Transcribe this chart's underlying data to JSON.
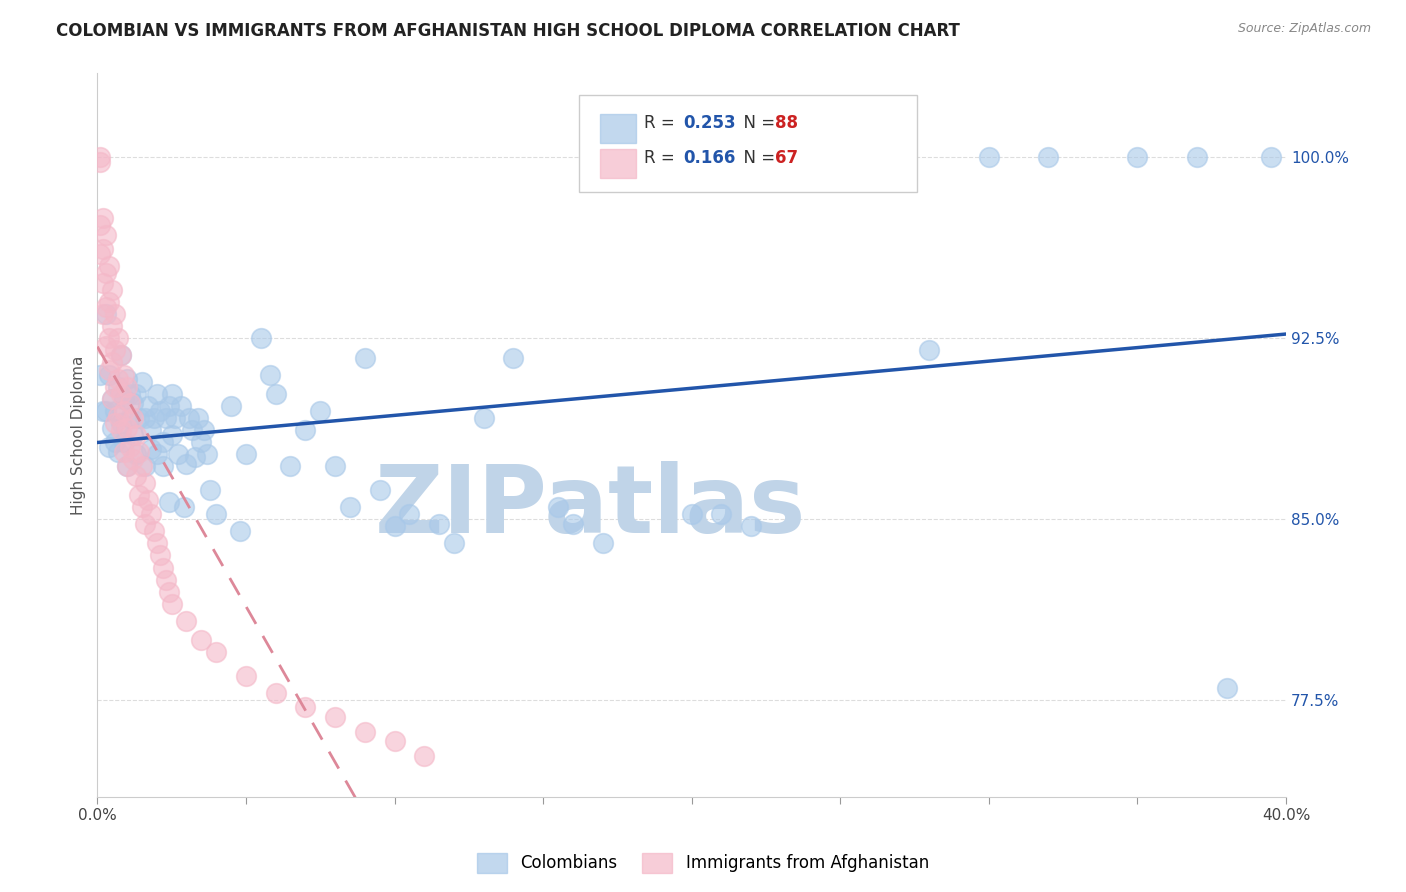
{
  "title": "COLOMBIAN VS IMMIGRANTS FROM AFGHANISTAN HIGH SCHOOL DIPLOMA CORRELATION CHART",
  "source": "Source: ZipAtlas.com",
  "ylabel": "High School Diploma",
  "xlim": [
    0.0,
    0.4
  ],
  "ylim": [
    0.735,
    1.035
  ],
  "xtick_positions": [
    0.0,
    0.05,
    0.1,
    0.15,
    0.2,
    0.25,
    0.3,
    0.35,
    0.4
  ],
  "xticklabels": [
    "0.0%",
    "",
    "",
    "",
    "",
    "",
    "",
    "",
    "40.0%"
  ],
  "ytick_positions": [
    0.775,
    0.85,
    0.925,
    1.0
  ],
  "ytick_labels": [
    "77.5%",
    "85.0%",
    "92.5%",
    "100.0%"
  ],
  "colombian_R": 0.253,
  "colombian_N": 88,
  "afghan_R": 0.166,
  "afghan_N": 67,
  "blue_scatter_color": "#a8c8e8",
  "pink_scatter_color": "#f4b8c8",
  "blue_line_color": "#2255aa",
  "pink_line_color": "#cc4466",
  "pink_dash_color": "#dd8899",
  "ytick_color": "#2255aa",
  "watermark": "ZIPatlas",
  "watermark_zip_color": "#c0d4e8",
  "watermark_atlas_color": "#88aacc",
  "legend_R_color": "#2255aa",
  "legend_N_color": "#cc2222",
  "blue_points": [
    [
      0.001,
      0.91
    ],
    [
      0.002,
      0.895
    ],
    [
      0.003,
      0.935
    ],
    [
      0.003,
      0.895
    ],
    [
      0.004,
      0.91
    ],
    [
      0.004,
      0.88
    ],
    [
      0.005,
      0.9
    ],
    [
      0.005,
      0.888
    ],
    [
      0.006,
      0.895
    ],
    [
      0.006,
      0.882
    ],
    [
      0.007,
      0.905
    ],
    [
      0.007,
      0.878
    ],
    [
      0.008,
      0.918
    ],
    [
      0.008,
      0.89
    ],
    [
      0.009,
      0.882
    ],
    [
      0.009,
      0.9
    ],
    [
      0.01,
      0.908
    ],
    [
      0.01,
      0.872
    ],
    [
      0.011,
      0.902
    ],
    [
      0.011,
      0.892
    ],
    [
      0.012,
      0.898
    ],
    [
      0.012,
      0.885
    ],
    [
      0.013,
      0.902
    ],
    [
      0.013,
      0.877
    ],
    [
      0.014,
      0.892
    ],
    [
      0.015,
      0.907
    ],
    [
      0.016,
      0.892
    ],
    [
      0.016,
      0.872
    ],
    [
      0.017,
      0.897
    ],
    [
      0.018,
      0.887
    ],
    [
      0.018,
      0.879
    ],
    [
      0.019,
      0.892
    ],
    [
      0.02,
      0.902
    ],
    [
      0.02,
      0.877
    ],
    [
      0.021,
      0.895
    ],
    [
      0.022,
      0.882
    ],
    [
      0.022,
      0.872
    ],
    [
      0.023,
      0.892
    ],
    [
      0.024,
      0.897
    ],
    [
      0.024,
      0.857
    ],
    [
      0.025,
      0.902
    ],
    [
      0.025,
      0.885
    ],
    [
      0.026,
      0.892
    ],
    [
      0.027,
      0.877
    ],
    [
      0.028,
      0.897
    ],
    [
      0.029,
      0.855
    ],
    [
      0.03,
      0.873
    ],
    [
      0.031,
      0.892
    ],
    [
      0.032,
      0.887
    ],
    [
      0.033,
      0.876
    ],
    [
      0.034,
      0.892
    ],
    [
      0.035,
      0.882
    ],
    [
      0.036,
      0.887
    ],
    [
      0.037,
      0.877
    ],
    [
      0.038,
      0.862
    ],
    [
      0.04,
      0.852
    ],
    [
      0.045,
      0.897
    ],
    [
      0.048,
      0.845
    ],
    [
      0.05,
      0.877
    ],
    [
      0.055,
      0.925
    ],
    [
      0.058,
      0.91
    ],
    [
      0.06,
      0.902
    ],
    [
      0.065,
      0.872
    ],
    [
      0.07,
      0.887
    ],
    [
      0.075,
      0.895
    ],
    [
      0.08,
      0.872
    ],
    [
      0.085,
      0.855
    ],
    [
      0.09,
      0.917
    ],
    [
      0.095,
      0.862
    ],
    [
      0.1,
      0.847
    ],
    [
      0.105,
      0.852
    ],
    [
      0.115,
      0.848
    ],
    [
      0.12,
      0.84
    ],
    [
      0.13,
      0.892
    ],
    [
      0.14,
      0.917
    ],
    [
      0.155,
      0.855
    ],
    [
      0.16,
      0.848
    ],
    [
      0.17,
      0.84
    ],
    [
      0.2,
      0.852
    ],
    [
      0.21,
      0.852
    ],
    [
      0.22,
      0.847
    ],
    [
      0.28,
      0.92
    ],
    [
      0.3,
      1.0
    ],
    [
      0.32,
      1.0
    ],
    [
      0.35,
      1.0
    ],
    [
      0.37,
      1.0
    ],
    [
      0.38,
      0.78
    ],
    [
      0.395,
      1.0
    ]
  ],
  "afghan_points": [
    [
      0.001,
      1.0
    ],
    [
      0.001,
      0.998
    ],
    [
      0.001,
      0.972
    ],
    [
      0.001,
      0.96
    ],
    [
      0.002,
      0.975
    ],
    [
      0.002,
      0.962
    ],
    [
      0.002,
      0.948
    ],
    [
      0.002,
      0.935
    ],
    [
      0.003,
      0.968
    ],
    [
      0.003,
      0.952
    ],
    [
      0.003,
      0.938
    ],
    [
      0.003,
      0.922
    ],
    [
      0.004,
      0.955
    ],
    [
      0.004,
      0.94
    ],
    [
      0.004,
      0.925
    ],
    [
      0.004,
      0.912
    ],
    [
      0.005,
      0.945
    ],
    [
      0.005,
      0.93
    ],
    [
      0.005,
      0.915
    ],
    [
      0.005,
      0.9
    ],
    [
      0.006,
      0.935
    ],
    [
      0.006,
      0.92
    ],
    [
      0.006,
      0.905
    ],
    [
      0.006,
      0.89
    ],
    [
      0.007,
      0.925
    ],
    [
      0.007,
      0.908
    ],
    [
      0.007,
      0.893
    ],
    [
      0.008,
      0.918
    ],
    [
      0.008,
      0.902
    ],
    [
      0.008,
      0.887
    ],
    [
      0.009,
      0.91
    ],
    [
      0.009,
      0.895
    ],
    [
      0.009,
      0.878
    ],
    [
      0.01,
      0.905
    ],
    [
      0.01,
      0.888
    ],
    [
      0.01,
      0.872
    ],
    [
      0.011,
      0.898
    ],
    [
      0.011,
      0.88
    ],
    [
      0.012,
      0.892
    ],
    [
      0.012,
      0.875
    ],
    [
      0.013,
      0.885
    ],
    [
      0.013,
      0.868
    ],
    [
      0.014,
      0.878
    ],
    [
      0.014,
      0.86
    ],
    [
      0.015,
      0.872
    ],
    [
      0.015,
      0.855
    ],
    [
      0.016,
      0.865
    ],
    [
      0.016,
      0.848
    ],
    [
      0.017,
      0.858
    ],
    [
      0.018,
      0.852
    ],
    [
      0.019,
      0.845
    ],
    [
      0.02,
      0.84
    ],
    [
      0.021,
      0.835
    ],
    [
      0.022,
      0.83
    ],
    [
      0.023,
      0.825
    ],
    [
      0.024,
      0.82
    ],
    [
      0.025,
      0.815
    ],
    [
      0.03,
      0.808
    ],
    [
      0.035,
      0.8
    ],
    [
      0.04,
      0.795
    ],
    [
      0.05,
      0.785
    ],
    [
      0.06,
      0.778
    ],
    [
      0.07,
      0.772
    ],
    [
      0.08,
      0.768
    ],
    [
      0.09,
      0.762
    ],
    [
      0.1,
      0.758
    ],
    [
      0.11,
      0.752
    ]
  ]
}
